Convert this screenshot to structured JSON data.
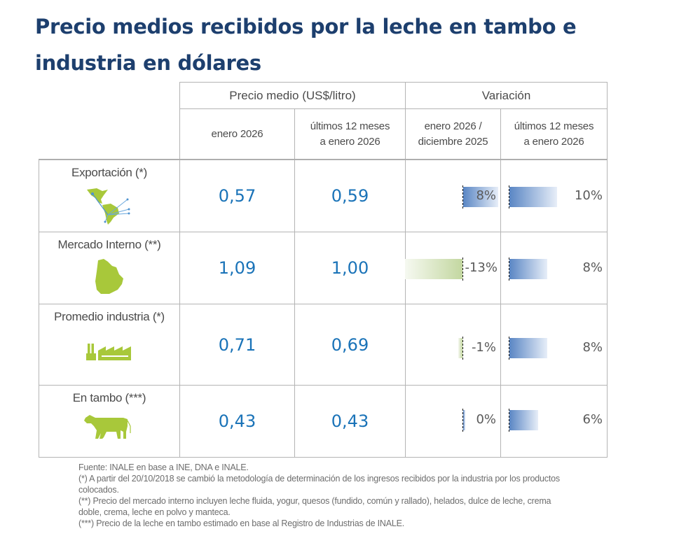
{
  "title": "Precio medios recibidos por la leche en tambo e industria en dólares",
  "table": {
    "header_groups": [
      {
        "label": "Precio medio (US$/litro)"
      },
      {
        "label": "Variación"
      }
    ],
    "sub_headers": [
      {
        "line1": "enero 2026",
        "line2": ""
      },
      {
        "line1": "últimos 12 meses",
        "line2": "a enero 2026"
      },
      {
        "line1": "enero 2026 /",
        "line2": "diciembre 2025"
      },
      {
        "line1": "últimos 12 meses",
        "line2": "a enero 2026"
      }
    ],
    "rows": [
      {
        "label": "Exportación (*)",
        "icon": "americas-map-export-icon",
        "price_month": "0,57",
        "price_12m": "0,59",
        "var_month": "8%",
        "var_month_value": 8,
        "var_12m": "10%",
        "var_12m_value": 10
      },
      {
        "label": "Mercado Interno (**)",
        "icon": "uruguay-map-icon",
        "price_month": "1,09",
        "price_12m": "1,00",
        "var_month": "-13%",
        "var_month_value": -13,
        "var_12m": "8%",
        "var_12m_value": 8
      },
      {
        "label": "Promedio industria (*)",
        "icon": "factory-icon",
        "price_month": "0,71",
        "price_12m": "0,69",
        "var_month": "-1%",
        "var_month_value": -1,
        "var_12m": "8%",
        "var_12m_value": 8
      },
      {
        "label": "En tambo (***)",
        "icon": "cow-icon",
        "price_month": "0,43",
        "price_12m": "0,43",
        "var_month": "0%",
        "var_month_value": 0,
        "var_12m": "6%",
        "var_12m_value": 6
      }
    ]
  },
  "colors": {
    "title": "#1d3f6e",
    "value": "#1a73b8",
    "bar_positive": "#5a86c4",
    "bar_negative": "#c3d7a0",
    "icon_green": "#a8c83a"
  },
  "footnotes": [
    "Fuente: INALE en base a INE, DNA e INALE.",
    "(*) A partir del 20/10/2018 se cambió la metodología de determinación de los ingresos recibidos por la industria por los productos colocados.",
    "(**) Precio del mercado interno incluyen leche fluida, yogur, quesos (fundido, común y rallado), helados, dulce de leche, crema doble, crema, leche en polvo y manteca.",
    "(***) Precio de la leche en tambo estimado en base al Registro de Industrias de INALE."
  ]
}
